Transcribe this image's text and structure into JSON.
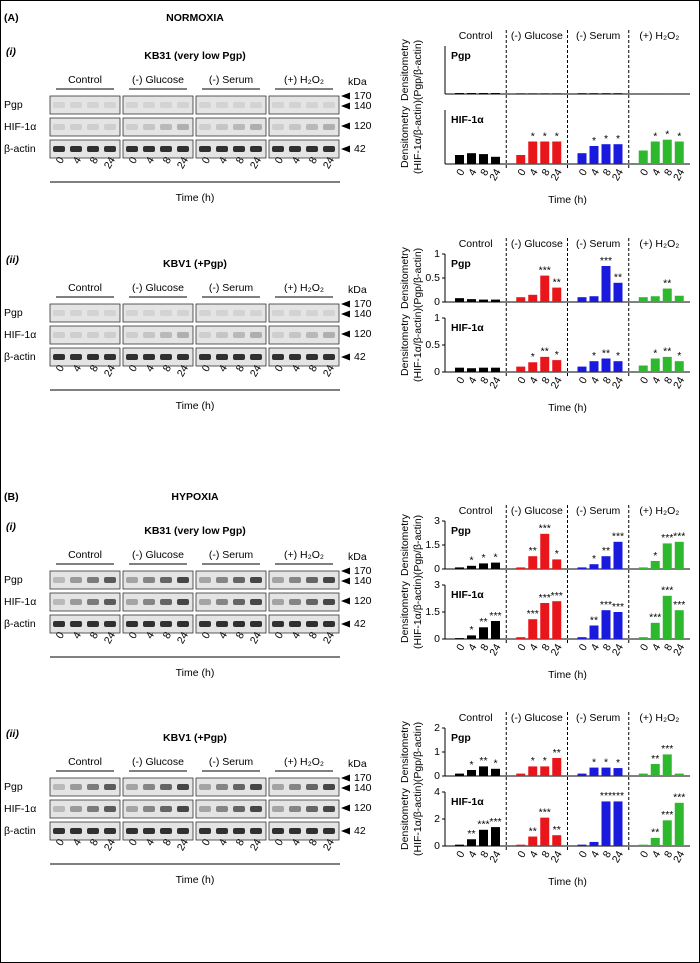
{
  "labels": {
    "conditions": [
      "Control",
      "(-) Glucose",
      "(-) Serum",
      "(+) H₂O₂"
    ],
    "blot_rows": [
      "Pgp",
      "HIF-1α",
      "β-actin"
    ],
    "kda": "kDa",
    "markers": [
      "170",
      "140",
      "120",
      "42"
    ],
    "lanes": [
      "0",
      "4",
      "8",
      "24"
    ],
    "time": "Time (h)",
    "densitometry": "Densitometry"
  },
  "panels": [
    {
      "letter": "(A)",
      "title": "NORMOXIA",
      "subpanels": [
        {
          "label": "(i)",
          "cell_line": "KB31 (very low Pgp)",
          "charts": [
            {
              "type": "bar",
              "title": "Pgp",
              "ylabel": "(Pgp/β-actin)",
              "ylim": [
                0,
                1
              ],
              "series": [
                {
                  "name": "Control",
                  "color": "#000000",
                  "values": [
                    0.02,
                    0.02,
                    0.02,
                    0.02
                  ],
                  "significance": [
                    null,
                    null,
                    null,
                    null
                  ]
                },
                {
                  "name": "(-) Glucose",
                  "color": "#e8161b",
                  "values": [
                    0.02,
                    0.02,
                    0.02,
                    0.02
                  ],
                  "significance": [
                    null,
                    null,
                    null,
                    null
                  ]
                },
                {
                  "name": "(-) Serum",
                  "color": "#1a1adf",
                  "values": [
                    0.02,
                    0.02,
                    0.02,
                    0.02
                  ],
                  "significance": [
                    null,
                    null,
                    null,
                    null
                  ]
                },
                {
                  "name": "(+) H₂O₂",
                  "color": "#2db82d",
                  "values": [
                    0.02,
                    0.02,
                    0.02,
                    0.02
                  ],
                  "significance": [
                    null,
                    null,
                    null,
                    null
                  ]
                }
              ]
            },
            {
              "type": "bar",
              "title": "HIF-1α",
              "ylabel": "(HIF-1α/β-actin)",
              "ylim": [
                0,
                0.6
              ],
              "series": [
                {
                  "name": "Control",
                  "color": "#000000",
                  "values": [
                    0.1,
                    0.12,
                    0.11,
                    0.08
                  ],
                  "significance": [
                    null,
                    null,
                    null,
                    null
                  ]
                },
                {
                  "name": "(-) Glucose",
                  "color": "#e8161b",
                  "values": [
                    0.1,
                    0.25,
                    0.25,
                    0.25
                  ],
                  "significance": [
                    null,
                    "*",
                    "*",
                    "*"
                  ]
                },
                {
                  "name": "(-) Serum",
                  "color": "#1a1adf",
                  "values": [
                    0.12,
                    0.2,
                    0.22,
                    0.22
                  ],
                  "significance": [
                    null,
                    "*",
                    "*",
                    "*"
                  ]
                },
                {
                  "name": "(+) H₂O₂",
                  "color": "#2db82d",
                  "values": [
                    0.15,
                    0.25,
                    0.27,
                    0.25
                  ],
                  "significance": [
                    null,
                    "*",
                    "*",
                    "*"
                  ]
                }
              ]
            }
          ]
        },
        {
          "label": "(ii)",
          "cell_line": "KBV1 (+Pgp)",
          "charts": [
            {
              "type": "bar",
              "title": "Pgp",
              "ylabel": "(Pgp/β-actin)",
              "ylim": [
                0,
                1
              ],
              "yticks": [
                0,
                0.5,
                1
              ],
              "series": [
                {
                  "name": "Control",
                  "color": "#000000",
                  "values": [
                    0.08,
                    0.06,
                    0.05,
                    0.05
                  ],
                  "significance": [
                    null,
                    null,
                    null,
                    null
                  ]
                },
                {
                  "name": "(-) Glucose",
                  "color": "#e8161b",
                  "values": [
                    0.1,
                    0.15,
                    0.55,
                    0.3
                  ],
                  "significance": [
                    null,
                    null,
                    "***",
                    "**"
                  ]
                },
                {
                  "name": "(-) Serum",
                  "color": "#1a1adf",
                  "values": [
                    0.1,
                    0.12,
                    0.75,
                    0.4
                  ],
                  "significance": [
                    null,
                    null,
                    "***",
                    "**"
                  ]
                },
                {
                  "name": "(+) H₂O₂",
                  "color": "#2db82d",
                  "values": [
                    0.1,
                    0.12,
                    0.28,
                    0.13
                  ],
                  "significance": [
                    null,
                    null,
                    "**",
                    null
                  ]
                }
              ]
            },
            {
              "type": "bar",
              "title": "HIF-1α",
              "ylabel": "(HIF-1α/β-actin)",
              "ylim": [
                0,
                1
              ],
              "yticks": [
                0,
                0.5,
                1
              ],
              "series": [
                {
                  "name": "Control",
                  "color": "#000000",
                  "values": [
                    0.08,
                    0.07,
                    0.08,
                    0.08
                  ],
                  "significance": [
                    null,
                    null,
                    null,
                    null
                  ]
                },
                {
                  "name": "(-) Glucose",
                  "color": "#e8161b",
                  "values": [
                    0.1,
                    0.18,
                    0.28,
                    0.22
                  ],
                  "significance": [
                    null,
                    "*",
                    "**",
                    "*"
                  ]
                },
                {
                  "name": "(-) Serum",
                  "color": "#1a1adf",
                  "values": [
                    0.1,
                    0.2,
                    0.25,
                    0.2
                  ],
                  "significance": [
                    null,
                    "*",
                    "**",
                    "*"
                  ]
                },
                {
                  "name": "(+) H₂O₂",
                  "color": "#2db82d",
                  "values": [
                    0.12,
                    0.25,
                    0.28,
                    0.2
                  ],
                  "significance": [
                    null,
                    "*",
                    "**",
                    "*"
                  ]
                }
              ]
            }
          ]
        }
      ]
    },
    {
      "letter": "(B)",
      "title": "HYPOXIA",
      "subpanels": [
        {
          "label": "(i)",
          "cell_line": "KB31 (very low Pgp)",
          "charts": [
            {
              "type": "bar",
              "title": "Pgp",
              "ylabel": "(Pgp/β-actin)",
              "ylim": [
                0,
                3
              ],
              "yticks": [
                0,
                1.5,
                3
              ],
              "series": [
                {
                  "name": "Control",
                  "color": "#000000",
                  "values": [
                    0.1,
                    0.2,
                    0.35,
                    0.4
                  ],
                  "significance": [
                    null,
                    "*",
                    "*",
                    "*"
                  ]
                },
                {
                  "name": "(-) Glucose",
                  "color": "#e8161b",
                  "values": [
                    0.1,
                    0.8,
                    2.2,
                    0.6
                  ],
                  "significance": [
                    null,
                    "**",
                    "***",
                    "*"
                  ]
                },
                {
                  "name": "(-) Serum",
                  "color": "#1a1adf",
                  "values": [
                    0.1,
                    0.3,
                    0.8,
                    1.7
                  ],
                  "significance": [
                    null,
                    "*",
                    "**",
                    "***"
                  ]
                },
                {
                  "name": "(+) H₂O₂",
                  "color": "#2db82d",
                  "values": [
                    0.1,
                    0.5,
                    1.6,
                    1.7
                  ],
                  "significance": [
                    null,
                    "*",
                    "***",
                    "***"
                  ]
                }
              ]
            },
            {
              "type": "bar",
              "title": "HIF-1α",
              "ylabel": "(HIF-1α/β-actin)",
              "ylim": [
                0,
                3
              ],
              "yticks": [
                0,
                1.5,
                3
              ],
              "series": [
                {
                  "name": "Control",
                  "color": "#000000",
                  "values": [
                    0.05,
                    0.2,
                    0.65,
                    1.0
                  ],
                  "significance": [
                    null,
                    "*",
                    "**",
                    "***"
                  ]
                },
                {
                  "name": "(-) Glucose",
                  "color": "#e8161b",
                  "values": [
                    0.1,
                    1.1,
                    2.0,
                    2.1
                  ],
                  "significance": [
                    null,
                    "***",
                    "***",
                    "***"
                  ]
                },
                {
                  "name": "(-) Serum",
                  "color": "#1a1adf",
                  "values": [
                    0.1,
                    0.75,
                    1.6,
                    1.5
                  ],
                  "significance": [
                    null,
                    "**",
                    "***",
                    "***"
                  ]
                },
                {
                  "name": "(+) H₂O₂",
                  "color": "#2db82d",
                  "values": [
                    0.1,
                    0.9,
                    2.4,
                    1.6
                  ],
                  "significance": [
                    null,
                    "***",
                    "***",
                    "***"
                  ]
                }
              ]
            }
          ]
        },
        {
          "label": "(ii)",
          "cell_line": "KBV1 (+Pgp)",
          "charts": [
            {
              "type": "bar",
              "title": "Pgp",
              "ylabel": "(Pgp/β-actin)",
              "ylim": [
                0,
                2
              ],
              "yticks": [
                0,
                1,
                2
              ],
              "series": [
                {
                  "name": "Control",
                  "color": "#000000",
                  "values": [
                    0.1,
                    0.25,
                    0.4,
                    0.3
                  ],
                  "significance": [
                    null,
                    "*",
                    "**",
                    "*"
                  ]
                },
                {
                  "name": "(-) Glucose",
                  "color": "#e8161b",
                  "values": [
                    0.1,
                    0.4,
                    0.4,
                    0.75
                  ],
                  "significance": [
                    null,
                    "*",
                    "*",
                    "**"
                  ]
                },
                {
                  "name": "(-) Serum",
                  "color": "#1a1adf",
                  "values": [
                    0.1,
                    0.35,
                    0.35,
                    0.33
                  ],
                  "significance": [
                    null,
                    "*",
                    "*",
                    "*"
                  ]
                },
                {
                  "name": "(+) H₂O₂",
                  "color": "#2db82d",
                  "values": [
                    0.1,
                    0.5,
                    0.9,
                    0.1
                  ],
                  "significance": [
                    null,
                    "**",
                    "***",
                    null
                  ]
                }
              ]
            },
            {
              "type": "bar",
              "title": "HIF-1α",
              "ylabel": "(HIF-1α/β-actin)",
              "ylim": [
                0,
                4
              ],
              "yticks": [
                0,
                2,
                4
              ],
              "series": [
                {
                  "name": "Control",
                  "color": "#000000",
                  "values": [
                    0.1,
                    0.5,
                    1.2,
                    1.4
                  ],
                  "significance": [
                    null,
                    "**",
                    "***",
                    "***"
                  ]
                },
                {
                  "name": "(-) Glucose",
                  "color": "#e8161b",
                  "values": [
                    0.1,
                    0.7,
                    2.1,
                    0.8
                  ],
                  "significance": [
                    null,
                    "**",
                    "***",
                    "**"
                  ]
                },
                {
                  "name": "(-) Serum",
                  "color": "#1a1adf",
                  "values": [
                    0.1,
                    0.3,
                    3.3,
                    3.3
                  ],
                  "significance": [
                    null,
                    null,
                    "***",
                    "***"
                  ]
                },
                {
                  "name": "(+) H₂O₂",
                  "color": "#2db82d",
                  "values": [
                    0.1,
                    0.6,
                    1.9,
                    3.2
                  ],
                  "significance": [
                    null,
                    "**",
                    "***",
                    "***"
                  ]
                }
              ]
            }
          ]
        }
      ]
    }
  ]
}
